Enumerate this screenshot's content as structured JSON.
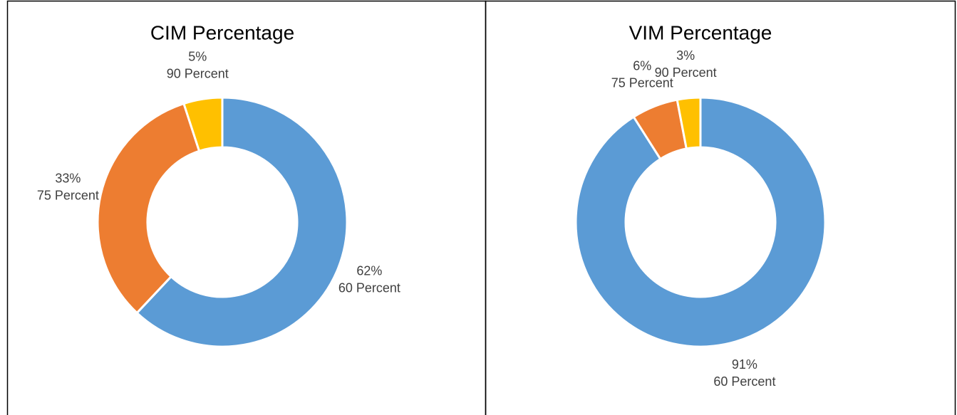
{
  "chart_data": [
    {
      "type": "donut",
      "title": "CIM Percentage",
      "categories": [
        "60 Percent",
        "75 Percent",
        "90 Percent"
      ],
      "values": [
        62,
        33,
        5
      ],
      "value_labels": [
        "62%",
        "33%",
        "5%"
      ],
      "colors": [
        "#5b9bd5",
        "#ed7d31",
        "#ffc000"
      ]
    },
    {
      "type": "donut",
      "title": "VIM Percentage",
      "categories": [
        "60 Percent",
        "75 Percent",
        "90 Percent"
      ],
      "values": [
        91,
        6,
        3
      ],
      "value_labels": [
        "91%",
        "6%",
        "3%"
      ],
      "colors": [
        "#5b9bd5",
        "#ed7d31",
        "#ffc000"
      ]
    }
  ]
}
